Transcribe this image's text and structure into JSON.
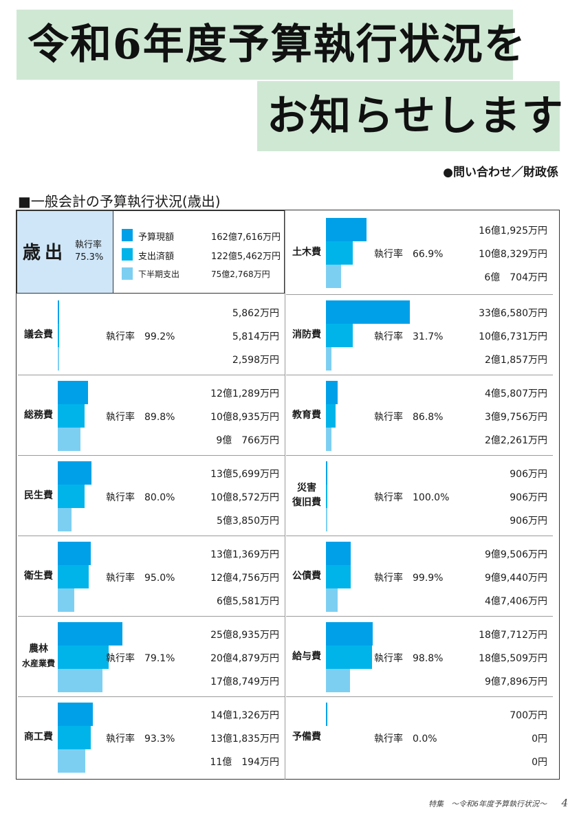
{
  "header": {
    "title_line1": "令和6年度予算執行状況を",
    "title_line2": "お知らせします",
    "contact": "●問い合わせ／財政係"
  },
  "section_title": "■一般会計の予算執行状況(歳出)",
  "colors": {
    "budget": "#00a0e9",
    "spent": "#00b4ea",
    "second_half": "#7dcff2",
    "title_bg": "#cfe8d4",
    "summary_bg": "#cfe6f8"
  },
  "summary": {
    "label": "歳出",
    "rate_label": "執行率",
    "rate": "75.3%",
    "legend": [
      {
        "label": "予算現額",
        "value": "162億7,616万円"
      },
      {
        "label": "支出済額",
        "value": "122億5,462万円"
      },
      {
        "label": "下半期支出",
        "value": "75億2,768万円"
      }
    ]
  },
  "chart_data": {
    "type": "bar",
    "title": "一般会計の予算執行状況(歳出)",
    "unit": "万円",
    "rate_label": "執行率",
    "series": [
      {
        "name": "予算現額"
      },
      {
        "name": "支出済額"
      },
      {
        "name": "下半期支出"
      }
    ],
    "categories": [
      {
        "name": "議会費",
        "rate": "99.2%",
        "budget_label": "5,862万円",
        "spent_label": "5,814万円",
        "second_half_label": "2,598万円",
        "values": [
          5862,
          5814,
          2598
        ]
      },
      {
        "name": "総務費",
        "rate": "89.8%",
        "budget_label": "12億1,289万円",
        "spent_label": "10億8,935万円",
        "second_half_label": "9億　766万円",
        "values": [
          121289,
          108935,
          90766
        ]
      },
      {
        "name": "民生費",
        "rate": "80.0%",
        "budget_label": "13億5,699万円",
        "spent_label": "10億8,572万円",
        "second_half_label": "5億3,850万円",
        "values": [
          135699,
          108572,
          53850
        ]
      },
      {
        "name": "衛生費",
        "rate": "95.0%",
        "budget_label": "13億1,369万円",
        "spent_label": "12億4,756万円",
        "second_half_label": "6億5,581万円",
        "values": [
          131369,
          124756,
          65581
        ]
      },
      {
        "name": "農林",
        "name2": "水産業費",
        "rate": "79.1%",
        "budget_label": "25億8,935万円",
        "spent_label": "20億4,879万円",
        "second_half_label": "17億8,749万円",
        "values": [
          258935,
          204879,
          178749
        ]
      },
      {
        "name": "商工費",
        "rate": "93.3%",
        "budget_label": "14億1,326万円",
        "spent_label": "13億1,835万円",
        "second_half_label": "11億　194万円",
        "values": [
          141326,
          131835,
          110194
        ]
      },
      {
        "name": "土木費",
        "rate": "66.9%",
        "budget_label": "16億1,925万円",
        "spent_label": "10億8,329万円",
        "second_half_label": "6億　704万円",
        "values": [
          161925,
          108329,
          60704
        ]
      },
      {
        "name": "消防費",
        "rate": "31.7%",
        "budget_label": "33億6,580万円",
        "spent_label": "10億6,731万円",
        "second_half_label": "2億1,857万円",
        "values": [
          336580,
          106731,
          21857
        ]
      },
      {
        "name": "教育費",
        "rate": "86.8%",
        "budget_label": "4億5,807万円",
        "spent_label": "3億9,756万円",
        "second_half_label": "2億2,261万円",
        "values": [
          45807,
          39756,
          22261
        ]
      },
      {
        "name": "災害",
        "name2": "復旧費",
        "rate": "100.0%",
        "budget_label": "906万円",
        "spent_label": "906万円",
        "second_half_label": "906万円",
        "values": [
          906,
          906,
          906
        ]
      },
      {
        "name": "公債費",
        "rate": "99.9%",
        "budget_label": "9億9,506万円",
        "spent_label": "9億9,440万円",
        "second_half_label": "4億7,406万円",
        "values": [
          99506,
          99440,
          47406
        ]
      },
      {
        "name": "給与費",
        "rate": "98.8%",
        "budget_label": "18億7,712万円",
        "spent_label": "18億5,509万円",
        "second_half_label": "9億7,896万円",
        "values": [
          187712,
          185509,
          97896
        ]
      },
      {
        "name": "予備費",
        "rate": "0.0%",
        "budget_label": "700万円",
        "spent_label": "0円",
        "second_half_label": "0円",
        "values": [
          700,
          0,
          0
        ]
      }
    ]
  },
  "footer": {
    "text": "特集　～令和6年度予算執行状況～",
    "page": "4"
  }
}
